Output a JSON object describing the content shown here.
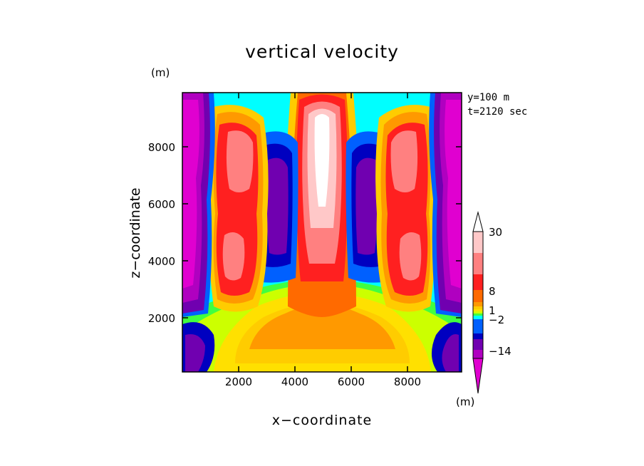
{
  "chart_data": {
    "type": "heatmap",
    "title": "vertical velocity",
    "xlabel": "x−coordinate",
    "ylabel": "z−coordinate",
    "y_unit": "(m)",
    "colorbar_unit": "(m)",
    "annotations": [
      "y=100 m",
      "t=2120 sec"
    ],
    "xlim": [
      0,
      10000
    ],
    "ylim": [
      0,
      10000
    ],
    "x_ticks": [
      2000,
      4000,
      6000,
      8000
    ],
    "y_ticks": [
      2000,
      4000,
      6000,
      8000
    ],
    "x_tick_labels": [
      "2000",
      "4000",
      "6000",
      "8000"
    ],
    "y_tick_labels": [
      "2000",
      "4000",
      "6000",
      "8000"
    ],
    "colorbar": {
      "labels": [
        "30",
        "8",
        "1",
        "−2",
        "−14"
      ],
      "colors": [
        "#ffffff",
        "#ffc8c8",
        "#ff8080",
        "#ff2020",
        "#ff6a00",
        "#ff9900",
        "#ffcc00",
        "#ffe000",
        "#ccff00",
        "#40ff40",
        "#00ffff",
        "#0060ff",
        "#0000c0",
        "#7000b0",
        "#b000c0",
        "#e000d0"
      ]
    },
    "fields": {
      "updraft_max": 30,
      "downdraft_min": -14,
      "central_column_x": 5000,
      "side_updraft_x": [
        2000,
        8000
      ],
      "downdraft_x": [
        3800,
        6200
      ]
    }
  }
}
